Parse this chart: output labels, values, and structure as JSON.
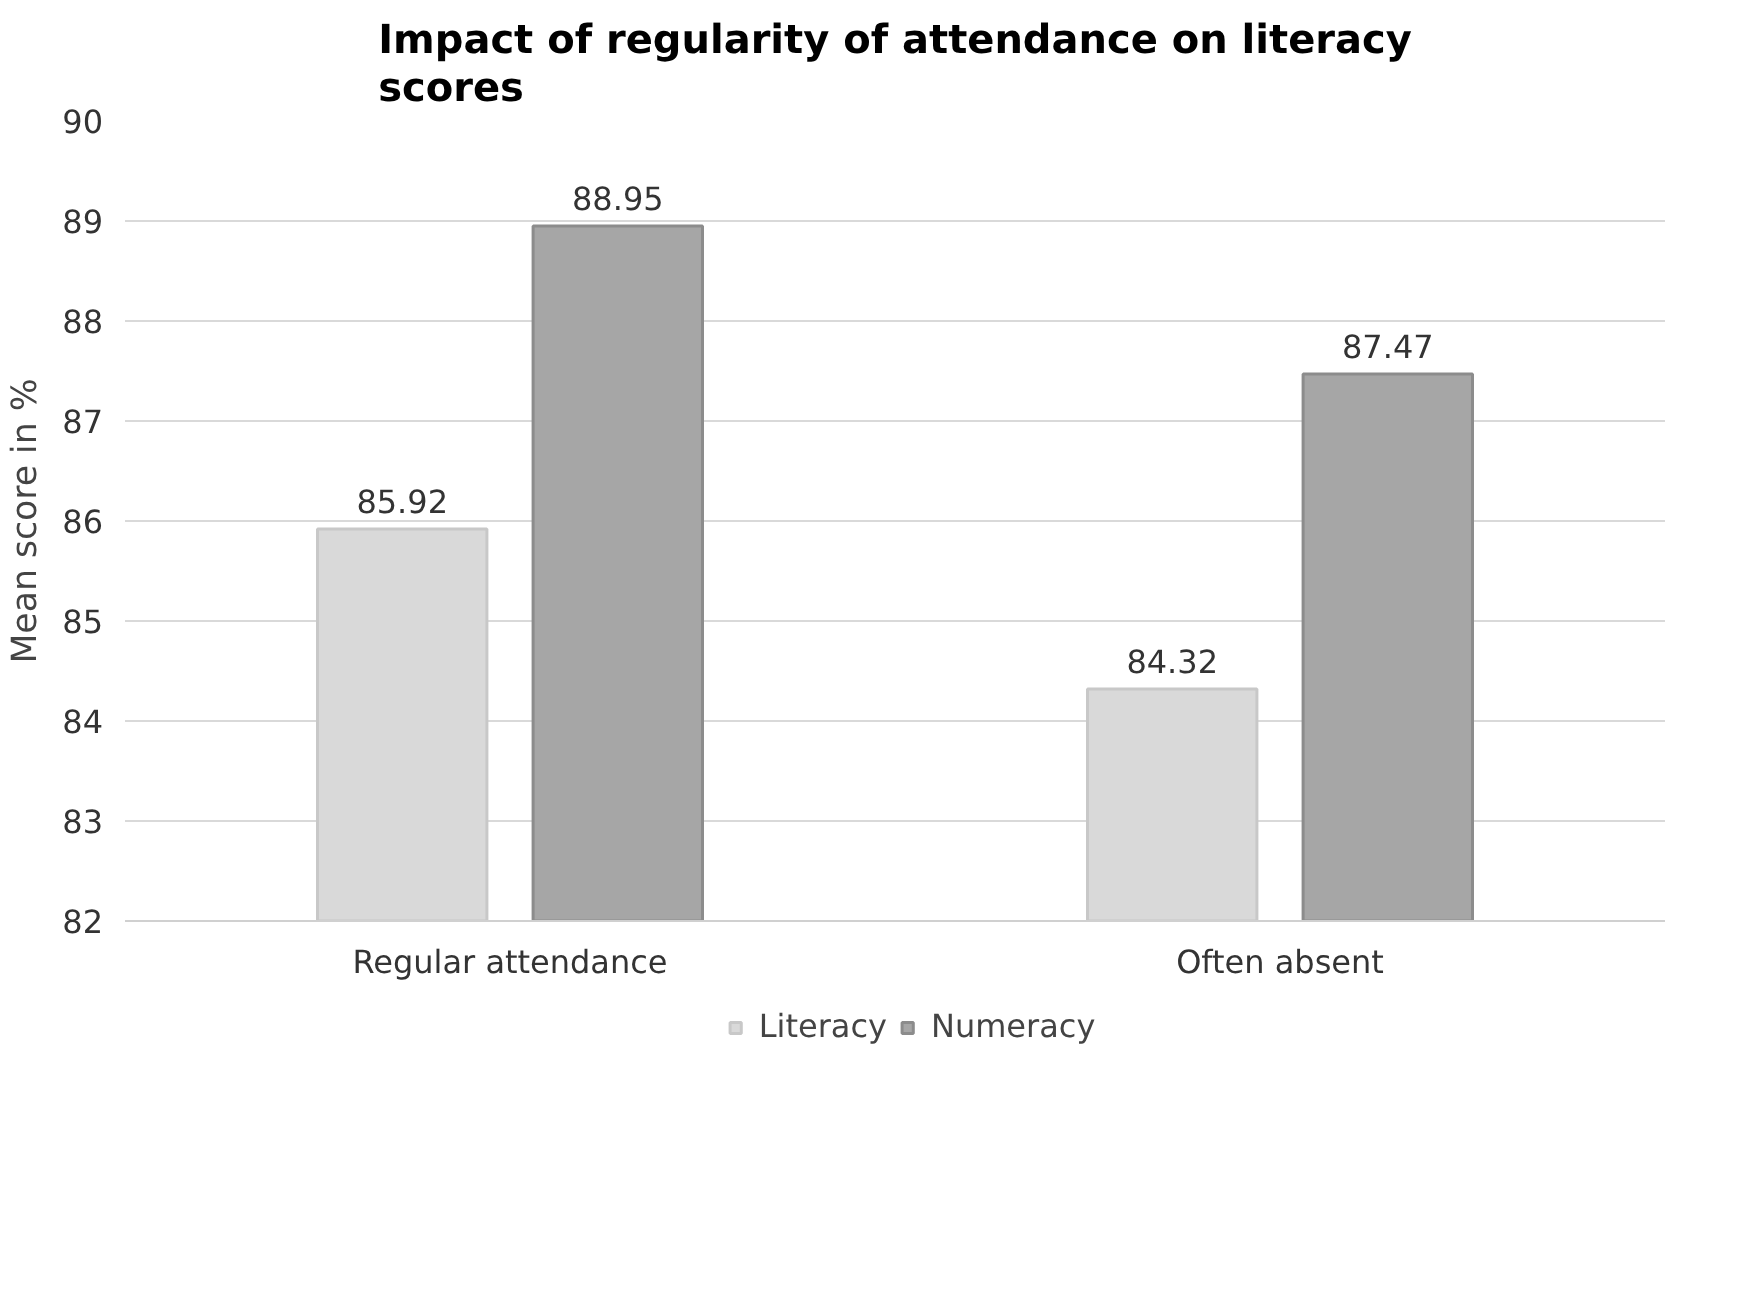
{
  "chart_data": {
    "type": "bar",
    "title": "Impact of regularity of attendance on literacy scores",
    "ylabel": "Mean score in %",
    "categories": [
      "Regular attendance",
      "Often absent"
    ],
    "series": [
      {
        "name": "Literacy",
        "color": "#d9d9d9",
        "values": [
          85.92,
          84.32
        ]
      },
      {
        "name": "Numeracy",
        "color": "#a6a6a6",
        "values": [
          88.95,
          87.47
        ]
      }
    ],
    "ylim": [
      82,
      90
    ],
    "yticks": [
      82,
      83,
      84,
      85,
      86,
      87,
      88,
      89,
      90
    ],
    "grid": "y",
    "legend": "bottom",
    "data_labels": true
  }
}
